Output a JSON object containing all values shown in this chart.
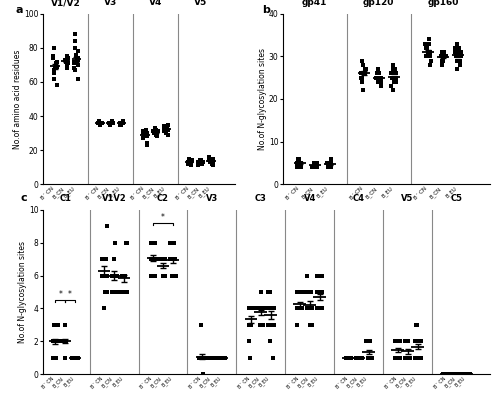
{
  "panel_a": {
    "title": "a",
    "ylabel": "No.of amino acid residues",
    "ylim": [
      0,
      100
    ],
    "yticks": [
      0,
      20,
      40,
      60,
      80,
      100
    ],
    "sections": [
      "V1/V2",
      "V3",
      "V4",
      "V5"
    ],
    "data": {
      "V1/V2": {
        "B_prime_CN": [
          58,
          62,
          65,
          67,
          68,
          68,
          69,
          69,
          70,
          70,
          71,
          72,
          74,
          75,
          80
        ],
        "B_CN": [
          68,
          70,
          71,
          71,
          72,
          72,
          72,
          72,
          73,
          73,
          74,
          74,
          75
        ],
        "B_EU": [
          62,
          67,
          68,
          70,
          70,
          71,
          71,
          72,
          72,
          72,
          73,
          73,
          74,
          76,
          78,
          80,
          84,
          88
        ]
      },
      "V3": {
        "B_prime_CN": [
          35,
          35,
          36,
          36,
          36,
          36,
          36,
          36,
          36,
          36,
          36,
          36,
          36,
          36,
          37
        ],
        "B_CN": [
          35,
          36,
          36,
          36,
          36,
          36,
          36,
          36,
          36,
          36,
          36,
          36,
          37
        ],
        "B_EU": [
          35,
          35,
          36,
          36,
          36,
          36,
          36,
          36,
          36,
          36,
          36,
          36,
          36,
          36,
          36,
          36,
          36,
          37
        ]
      },
      "V4": {
        "B_prime_CN": [
          23,
          24,
          27,
          28,
          29,
          29,
          30,
          30,
          30,
          30,
          30,
          31,
          31,
          31,
          32
        ],
        "B_CN": [
          28,
          29,
          30,
          30,
          30,
          30,
          31,
          31,
          31,
          31,
          32,
          32,
          33
        ],
        "B_EU": [
          29,
          30,
          31,
          31,
          32,
          32,
          32,
          33,
          33,
          33,
          33,
          33,
          33,
          33,
          34,
          34,
          34,
          35
        ]
      },
      "V5": {
        "B_prime_CN": [
          11,
          12,
          12,
          13,
          13,
          13,
          13,
          13,
          14,
          14,
          14,
          14,
          14,
          14,
          15
        ],
        "B_CN": [
          11,
          12,
          12,
          13,
          13,
          13,
          13,
          13,
          13,
          13,
          14,
          14,
          14
        ],
        "B_EU": [
          11,
          12,
          13,
          13,
          13,
          13,
          13,
          13,
          14,
          14,
          14,
          14,
          14,
          14,
          15,
          15,
          15,
          16
        ]
      }
    }
  },
  "panel_b": {
    "title": "b",
    "ylabel": "No.of N-glycosylation sites",
    "ylim": [
      0,
      40
    ],
    "yticks": [
      0,
      10,
      20,
      30,
      40
    ],
    "sections": [
      "gp41",
      "gp120",
      "gp160"
    ],
    "data": {
      "gp41": {
        "B_prime_CN": [
          4,
          4,
          4,
          5,
          5,
          5,
          5,
          5,
          5,
          5,
          5,
          5,
          5,
          6,
          6
        ],
        "B_CN": [
          4,
          4,
          4,
          4,
          4,
          4,
          4,
          4,
          5,
          5,
          5,
          5,
          5
        ],
        "B_EU": [
          4,
          4,
          4,
          4,
          4,
          4,
          4,
          5,
          5,
          5,
          5,
          5,
          5,
          5,
          5,
          5,
          5,
          6
        ]
      },
      "gp120": {
        "B_prime_CN": [
          22,
          24,
          25,
          25,
          25,
          26,
          26,
          26,
          26,
          27,
          27,
          27,
          28,
          28,
          29
        ],
        "B_CN": [
          23,
          24,
          24,
          24,
          25,
          25,
          25,
          25,
          25,
          25,
          26,
          26,
          27
        ],
        "B_EU": [
          22,
          23,
          24,
          24,
          24,
          25,
          25,
          25,
          25,
          25,
          25,
          26,
          26,
          26,
          26,
          27,
          27,
          28
        ]
      },
      "gp160": {
        "B_prime_CN": [
          28,
          29,
          30,
          30,
          30,
          30,
          31,
          31,
          31,
          32,
          32,
          32,
          33,
          33,
          34
        ],
        "B_CN": [
          28,
          29,
          29,
          30,
          30,
          30,
          30,
          30,
          30,
          30,
          30,
          31,
          31
        ],
        "B_EU": [
          27,
          28,
          29,
          29,
          30,
          30,
          30,
          30,
          30,
          30,
          30,
          31,
          31,
          31,
          31,
          32,
          32,
          33
        ]
      }
    }
  },
  "panel_c": {
    "title": "c",
    "ylabel": "No.of N-glycosylation sites",
    "ylim": [
      0,
      10
    ],
    "yticks": [
      0,
      2,
      4,
      6,
      8,
      10
    ],
    "sections": [
      "C1",
      "V1V2",
      "C2",
      "V3",
      "C3",
      "V4",
      "C4",
      "V5",
      "C5"
    ],
    "data": {
      "C1": {
        "B_prime_CN": [
          1,
          1,
          1,
          2,
          2,
          2,
          2,
          2,
          2,
          2,
          2,
          2,
          3,
          3,
          3
        ],
        "B_CN": [
          1,
          2,
          2,
          2,
          2,
          2,
          2,
          2,
          2,
          2,
          2,
          2,
          3
        ],
        "B_EU": [
          1,
          1,
          1,
          1,
          1,
          1,
          1,
          1,
          1,
          1,
          1,
          1,
          1,
          1,
          1,
          1,
          1,
          1
        ]
      },
      "V1V2": {
        "B_prime_CN": [
          4,
          5,
          5,
          6,
          6,
          6,
          6,
          6,
          6,
          7,
          7,
          7,
          7,
          7,
          9
        ],
        "B_CN": [
          5,
          5,
          5,
          5,
          6,
          6,
          6,
          6,
          6,
          6,
          7,
          7,
          8
        ],
        "B_EU": [
          5,
          5,
          5,
          5,
          5,
          5,
          5,
          6,
          6,
          6,
          6,
          6,
          6,
          6,
          6,
          6,
          8,
          8
        ]
      },
      "C2": {
        "B_prime_CN": [
          6,
          6,
          6,
          7,
          7,
          7,
          7,
          7,
          7,
          7,
          7,
          8,
          8,
          8,
          8
        ],
        "B_CN": [
          6,
          6,
          6,
          6,
          6,
          7,
          7,
          7,
          7,
          7,
          7,
          7,
          7
        ],
        "B_EU": [
          6,
          6,
          6,
          6,
          7,
          7,
          7,
          7,
          7,
          7,
          7,
          7,
          7,
          7,
          7,
          8,
          8,
          8
        ]
      },
      "V3": {
        "B_prime_CN": [
          0,
          1,
          1,
          1,
          1,
          1,
          1,
          1,
          1,
          1,
          1,
          1,
          1,
          1,
          3
        ],
        "B_CN": [
          1,
          1,
          1,
          1,
          1,
          1,
          1,
          1,
          1,
          1,
          1,
          1,
          1
        ],
        "B_EU": [
          1,
          1,
          1,
          1,
          1,
          1,
          1,
          1,
          1,
          1,
          1,
          1,
          1,
          1,
          1,
          1,
          1,
          1
        ]
      },
      "C3": {
        "B_prime_CN": [
          1,
          2,
          3,
          3,
          3,
          3,
          3,
          4,
          4,
          4,
          4,
          4,
          4,
          4,
          4
        ],
        "B_CN": [
          3,
          3,
          3,
          3,
          4,
          4,
          4,
          4,
          4,
          4,
          4,
          4,
          5
        ],
        "B_EU": [
          1,
          2,
          3,
          3,
          3,
          3,
          4,
          4,
          4,
          4,
          4,
          4,
          4,
          4,
          4,
          4,
          5,
          5
        ]
      },
      "V4": {
        "B_prime_CN": [
          3,
          4,
          4,
          4,
          4,
          4,
          4,
          4,
          4,
          4,
          5,
          5,
          5,
          5,
          5
        ],
        "B_CN": [
          3,
          3,
          4,
          4,
          4,
          4,
          4,
          4,
          4,
          5,
          5,
          5,
          6
        ],
        "B_EU": [
          4,
          4,
          4,
          4,
          4,
          4,
          4,
          4,
          5,
          5,
          5,
          5,
          5,
          5,
          5,
          6,
          6,
          6
        ]
      },
      "C4": {
        "B_prime_CN": [
          1,
          1,
          1,
          1,
          1,
          1,
          1,
          1,
          1,
          1,
          1,
          1,
          1,
          1,
          1
        ],
        "B_CN": [
          1,
          1,
          1,
          1,
          1,
          1,
          1,
          1,
          1,
          1,
          1,
          1,
          1
        ],
        "B_EU": [
          1,
          1,
          1,
          1,
          1,
          1,
          1,
          1,
          1,
          1,
          1,
          1,
          2,
          2,
          2,
          2,
          2,
          2
        ]
      },
      "V5": {
        "B_prime_CN": [
          1,
          1,
          1,
          1,
          1,
          1,
          1,
          1,
          2,
          2,
          2,
          2,
          2,
          2,
          2
        ],
        "B_CN": [
          1,
          1,
          1,
          1,
          1,
          1,
          1,
          1,
          2,
          2,
          2,
          2,
          2
        ],
        "B_EU": [
          1,
          1,
          1,
          1,
          1,
          1,
          1,
          1,
          2,
          2,
          2,
          2,
          2,
          2,
          2,
          2,
          3,
          3
        ]
      },
      "C5": {
        "B_prime_CN": [
          0,
          0,
          0,
          0,
          0,
          0,
          0,
          0,
          0,
          0,
          0,
          0,
          0,
          0,
          0
        ],
        "B_CN": [
          0,
          0,
          0,
          0,
          0,
          0,
          0,
          0,
          0,
          0,
          0,
          0,
          0
        ],
        "B_EU": [
          0,
          0,
          0,
          0,
          0,
          0,
          0,
          0,
          0,
          0,
          0,
          0,
          0,
          0,
          0,
          0,
          0,
          0
        ]
      }
    }
  },
  "tick_labels": [
    "B'´CN",
    "B_CN",
    "B_EU"
  ],
  "marker_size": 2.5,
  "dot_color": "black",
  "mean_line_color": "black",
  "sep_line_color": "#888888"
}
